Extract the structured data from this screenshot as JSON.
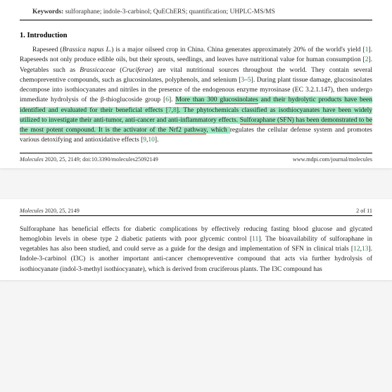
{
  "keywords": {
    "label": "Keywords:",
    "text": "sulforaphane; indole-3-carbinol; QuEChERS; quantification; UHPLC-MS/MS"
  },
  "section": {
    "number": "1.",
    "title": "Introduction"
  },
  "para1": {
    "t1": "Rapeseed (",
    "t2": "Brassica napus L.",
    "t3": ") is a major oilseed crop in China. China generates approximately 20% of the world's yield [",
    "c1": "1",
    "t4": "]. Rapeseeds not only produce edible oils, but their sprouts, seedlings, and leaves have nutritional value for human consumption [",
    "c2": "2",
    "t5": "]. Vegetables such as ",
    "t6": "Brassicaceae",
    "t7": " (",
    "t8": "Cruciferae",
    "t9": ") are vital nutritional sources throughout the world. They contain several chemopreventive compounds, such as glucosinolates, polyphenols, and selenium [",
    "c3": "3",
    "t10": "–",
    "c4": "5",
    "t11": "]. During plant tissue damage, glucosinolates decompose into isothiocyanates and nitriles in the presence of the endogenous enzyme myrosinase (EC 3.2.1.147), then undergo immediate hydrolysis of the β-thioglucoside group [",
    "c5": "6",
    "t12": "]. ",
    "h1a": "More than 300 glucosinolates",
    "h1b": " and their hydrolytic products have been identified and evaluated for their beneficial effects [",
    "hc1": "7",
    "hcomma": ",",
    "hc2": "8",
    "h1c": "]. The phytochemicals classified as isothiocyanates have been widely utilized to investigate their anti-tumor, anti-cancer and anti-inflammatory effects. ",
    "h2a": "Sulforaphane (SFN) has been demonstrated to be the most potent compound. It is the activator of the Nrf2 pathway",
    "h2b": ", which ",
    "t13": "regulates the cellular defense system and promotes various detoxifying and antioxidative effects [",
    "c6": "9",
    "t14": ",",
    "c7": "10",
    "t15": "]."
  },
  "footer": {
    "left": "Molecules 2020, 25, 2149; doi:10.3390/molecules25092149",
    "left_ital": "Molecules",
    "left_rest": " 2020, 25, 2149; doi:10.3390/molecules25092149",
    "right": "www.mdpi.com/journal/molecules"
  },
  "header2": {
    "left_ital": "Molecules",
    "left_rest": " 2020, 25, 2149",
    "right": "2 of 11"
  },
  "para2": {
    "t1": "Sulforaphane has beneficial effects for diabetic complications by effectively reducing fasting blood glucose and glycated hemoglobin levels in obese type 2 diabetic patients with poor glycemic control [",
    "c1": "11",
    "t2": "]. The bioavailability of sulforaphane in vegetables has also been studied, and could serve as a guide for the design and implementation of SFN in clinical trials [",
    "c2": "12",
    "t3": ",",
    "c3": "13",
    "t4": "]. Indole-3-carbinol (I3C) is another important anti-cancer chemopreventive compound that acts via further hydrolysis of isothiocyanate (indol-3-methyl isothiocyanate), which is derived from cruciferous plants. The I3C compound has"
  },
  "colors": {
    "highlight": "#9de9c0",
    "underline": "#c23a2e",
    "citation": "#2d7a4a"
  }
}
